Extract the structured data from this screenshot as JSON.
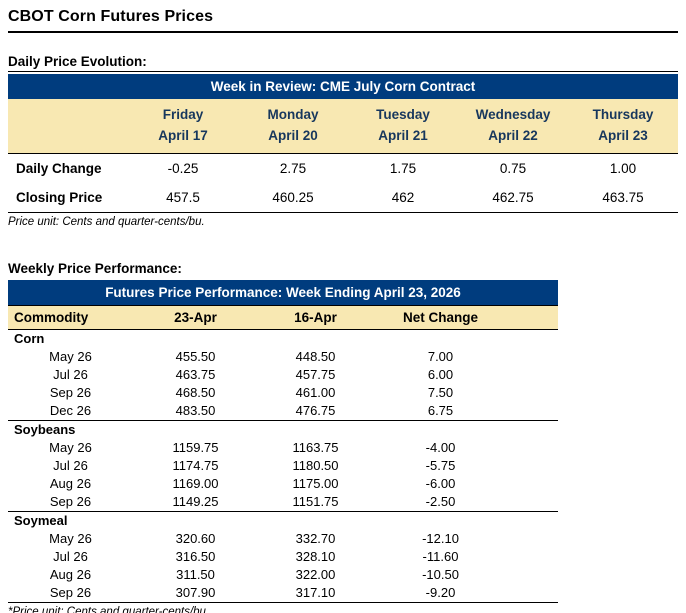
{
  "page": {
    "title": "CBOT Corn Futures Prices"
  },
  "colors": {
    "header_blue": "#003C7E",
    "header_tan": "#F8E8B2",
    "day_header_text": "#17375D"
  },
  "daily": {
    "section_heading": "Daily Price Evolution:",
    "table_title": "Week in Review: CME July Corn Contract",
    "day_columns": [
      {
        "day": "Friday",
        "date": "April 17"
      },
      {
        "day": "Monday",
        "date": "April 20"
      },
      {
        "day": "Tuesday",
        "date": "April 21"
      },
      {
        "day": "Wednesday",
        "date": "April 22"
      },
      {
        "day": "Thursday",
        "date": "April 23"
      }
    ],
    "rows": [
      {
        "label": "Daily Change",
        "values": [
          "-0.25",
          "2.75",
          "1.75",
          "0.75",
          "1.00"
        ]
      },
      {
        "label": "Closing Price",
        "values": [
          "457.5",
          "460.25",
          "462",
          "462.75",
          "463.75"
        ]
      }
    ],
    "footnote": "Price unit: Cents and quarter-cents/bu."
  },
  "weekly": {
    "section_heading": "Weekly Price Performance:",
    "table_title": "Futures Price Performance: Week Ending April 23, 2026",
    "columns": [
      "Commodity",
      "23-Apr",
      "16-Apr",
      "Net Change"
    ],
    "groups": [
      {
        "name": "Corn",
        "rows": [
          {
            "contract": "May 26",
            "apr23": "455.50",
            "apr16": "448.50",
            "net_change": "7.00"
          },
          {
            "contract": "Jul 26",
            "apr23": "463.75",
            "apr16": "457.75",
            "net_change": "6.00"
          },
          {
            "contract": "Sep 26",
            "apr23": "468.50",
            "apr16": "461.00",
            "net_change": "7.50"
          },
          {
            "contract": "Dec 26",
            "apr23": "483.50",
            "apr16": "476.75",
            "net_change": "6.75"
          }
        ]
      },
      {
        "name": "Soybeans",
        "rows": [
          {
            "contract": "May 26",
            "apr23": "1159.75",
            "apr16": "1163.75",
            "net_change": "-4.00"
          },
          {
            "contract": "Jul 26",
            "apr23": "1174.75",
            "apr16": "1180.50",
            "net_change": "-5.75"
          },
          {
            "contract": "Aug 26",
            "apr23": "1169.00",
            "apr16": "1175.00",
            "net_change": "-6.00"
          },
          {
            "contract": "Sep 26",
            "apr23": "1149.25",
            "apr16": "1151.75",
            "net_change": "-2.50"
          }
        ]
      },
      {
        "name": "Soymeal",
        "rows": [
          {
            "contract": "May 26",
            "apr23": "320.60",
            "apr16": "332.70",
            "net_change": "-12.10"
          },
          {
            "contract": "Jul 26",
            "apr23": "316.50",
            "apr16": "328.10",
            "net_change": "-11.60"
          },
          {
            "contract": "Aug 26",
            "apr23": "311.50",
            "apr16": "322.00",
            "net_change": "-10.50"
          },
          {
            "contract": "Sep 26",
            "apr23": "307.90",
            "apr16": "317.10",
            "net_change": "-9.20"
          }
        ]
      }
    ],
    "footnote": "*Price unit: Cents and quarter-cents/bu."
  }
}
